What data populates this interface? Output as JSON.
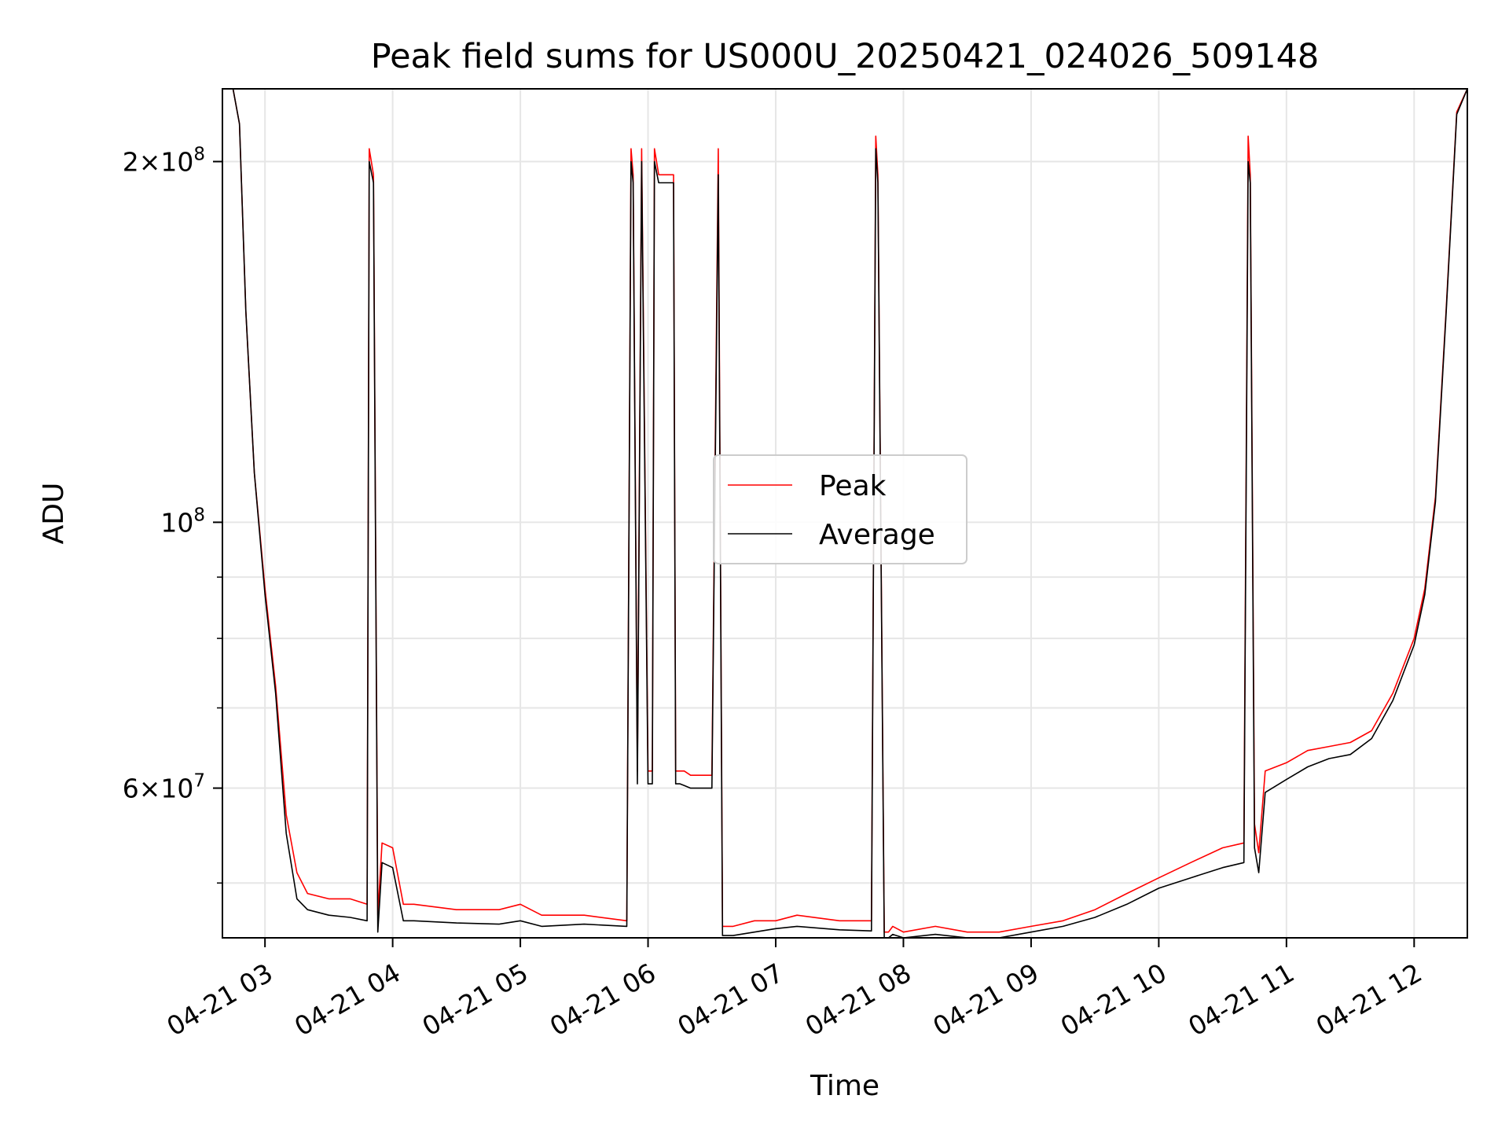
{
  "chart_data": {
    "type": "line",
    "title": "Peak field sums for US000U_20250421_024026_509148",
    "xlabel": "Time",
    "ylabel": "ADU",
    "y_scale": "log",
    "xlim": [
      "2025-04-21 02:40",
      "2025-04-21 12:25"
    ],
    "ylim": [
      45000000,
      230000000
    ],
    "x_ticks": [
      "04-21 03",
      "04-21 04",
      "04-21 05",
      "04-21 06",
      "04-21 07",
      "04-21 08",
      "04-21 09",
      "04-21 10",
      "04-21 11",
      "04-21 12"
    ],
    "y_major_ticks": [
      {
        "value": 60000000,
        "mantissa": "6",
        "exponent": "7"
      },
      {
        "value": 100000000,
        "mantissa": "",
        "exponent": "8"
      },
      {
        "value": 200000000,
        "mantissa": "2",
        "exponent": "8"
      }
    ],
    "y_minor_ticks": [
      50000000,
      70000000,
      80000000,
      90000000
    ],
    "grid": true,
    "legend_position": "center",
    "series": [
      {
        "name": "Peak",
        "color": "#ff0000",
        "x": [
          "02:40",
          "02:45",
          "02:48",
          "02:51",
          "02:55",
          "03:00",
          "03:05",
          "03:10",
          "03:15",
          "03:20",
          "03:30",
          "03:40",
          "03:48",
          "03:49",
          "03:51",
          "03:53",
          "03:55",
          "04:00",
          "04:05",
          "04:10",
          "04:30",
          "04:50",
          "05:00",
          "05:10",
          "05:30",
          "05:50",
          "05:52",
          "05:53",
          "05:55",
          "05:57",
          "06:00",
          "06:02",
          "06:03",
          "06:05",
          "06:12",
          "06:13",
          "06:15",
          "06:17",
          "06:20",
          "06:30",
          "06:33",
          "06:35",
          "06:40",
          "06:50",
          "07:00",
          "07:10",
          "07:30",
          "07:45",
          "07:47",
          "07:48",
          "07:51",
          "07:53",
          "07:55",
          "08:00",
          "08:15",
          "08:30",
          "08:45",
          "09:00",
          "09:15",
          "09:30",
          "09:45",
          "10:00",
          "10:15",
          "10:30",
          "10:40",
          "10:42",
          "10:43",
          "10:45",
          "10:47",
          "10:50",
          "11:00",
          "11:10",
          "11:20",
          "11:30",
          "11:40",
          "11:50",
          "12:00",
          "12:05",
          "12:10",
          "12:15",
          "12:20",
          "12:25"
        ],
        "y": [
          230000000,
          230000000,
          215000000,
          150000000,
          110000000,
          88000000,
          73000000,
          57000000,
          51000000,
          49000000,
          48500000,
          48500000,
          48000000,
          205000000,
          195000000,
          47000000,
          54000000,
          53500000,
          48000000,
          48000000,
          47500000,
          47500000,
          48000000,
          47000000,
          47000000,
          46500000,
          205000000,
          195000000,
          62000000,
          205000000,
          62000000,
          62000000,
          205000000,
          195000000,
          195000000,
          62000000,
          62000000,
          62000000,
          61500000,
          61500000,
          205000000,
          46000000,
          46000000,
          46500000,
          46500000,
          47000000,
          46500000,
          46500000,
          210000000,
          195000000,
          45500000,
          45500000,
          46000000,
          45500000,
          46000000,
          45500000,
          45500000,
          46000000,
          46500000,
          47500000,
          49000000,
          50500000,
          52000000,
          53500000,
          54000000,
          210000000,
          195000000,
          56000000,
          53000000,
          62000000,
          63000000,
          64500000,
          65000000,
          65500000,
          67000000,
          72000000,
          80000000,
          88000000,
          105000000,
          150000000,
          220000000,
          230000000
        ]
      },
      {
        "name": "Average",
        "color": "#000000",
        "x": [
          "02:40",
          "02:45",
          "02:48",
          "02:51",
          "02:55",
          "03:00",
          "03:05",
          "03:10",
          "03:15",
          "03:20",
          "03:30",
          "03:40",
          "03:48",
          "03:49",
          "03:51",
          "03:53",
          "03:55",
          "04:00",
          "04:05",
          "04:10",
          "04:30",
          "04:50",
          "05:00",
          "05:10",
          "05:30",
          "05:50",
          "05:52",
          "05:53",
          "05:55",
          "05:57",
          "06:00",
          "06:02",
          "06:03",
          "06:05",
          "06:12",
          "06:13",
          "06:15",
          "06:17",
          "06:20",
          "06:30",
          "06:33",
          "06:35",
          "06:40",
          "06:50",
          "07:00",
          "07:10",
          "07:30",
          "07:45",
          "07:47",
          "07:48",
          "07:51",
          "07:53",
          "07:55",
          "08:00",
          "08:15",
          "08:30",
          "08:45",
          "09:00",
          "09:15",
          "09:30",
          "09:45",
          "10:00",
          "10:15",
          "10:30",
          "10:40",
          "10:42",
          "10:43",
          "10:45",
          "10:47",
          "10:50",
          "11:00",
          "11:10",
          "11:20",
          "11:30",
          "11:40",
          "11:50",
          "12:00",
          "12:05",
          "12:10",
          "12:15",
          "12:20",
          "12:25"
        ],
        "y": [
          230000000,
          230000000,
          215000000,
          150000000,
          110000000,
          87000000,
          72000000,
          55000000,
          48500000,
          47500000,
          47000000,
          46800000,
          46500000,
          200000000,
          192000000,
          45500000,
          52000000,
          51500000,
          46500000,
          46500000,
          46300000,
          46200000,
          46500000,
          46000000,
          46200000,
          46000000,
          200000000,
          192000000,
          60500000,
          200000000,
          60500000,
          60500000,
          200000000,
          192000000,
          192000000,
          60500000,
          60500000,
          60300000,
          60000000,
          60000000,
          195000000,
          45200000,
          45200000,
          45500000,
          45800000,
          46000000,
          45700000,
          45600000,
          205000000,
          192000000,
          45000000,
          45000000,
          45300000,
          45000000,
          45300000,
          45000000,
          45000000,
          45500000,
          46000000,
          46800000,
          48000000,
          49500000,
          50500000,
          51500000,
          52000000,
          200000000,
          192000000,
          53500000,
          51000000,
          59500000,
          61000000,
          62500000,
          63500000,
          64000000,
          66000000,
          71000000,
          79000000,
          87000000,
          104000000,
          149000000,
          219000000,
          230000000
        ]
      }
    ]
  }
}
